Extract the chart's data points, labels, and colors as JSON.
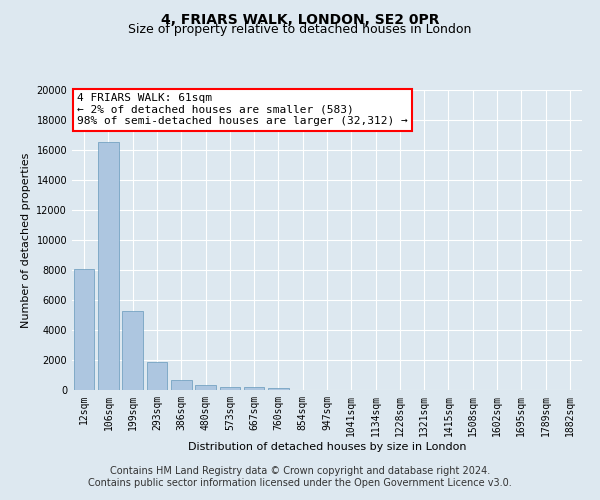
{
  "title": "4, FRIARS WALK, LONDON, SE2 0PR",
  "subtitle": "Size of property relative to detached houses in London",
  "xlabel": "Distribution of detached houses by size in London",
  "ylabel": "Number of detached properties",
  "footer_line1": "Contains HM Land Registry data © Crown copyright and database right 2024.",
  "footer_line2": "Contains public sector information licensed under the Open Government Licence v3.0.",
  "annotation_line1": "4 FRIARS WALK: 61sqm",
  "annotation_line2": "← 2% of detached houses are smaller (583)",
  "annotation_line3": "98% of semi-detached houses are larger (32,312) →",
  "bar_color": "#adc6e0",
  "bar_edge_color": "#6699bb",
  "categories": [
    "12sqm",
    "106sqm",
    "199sqm",
    "293sqm",
    "386sqm",
    "480sqm",
    "573sqm",
    "667sqm",
    "760sqm",
    "854sqm",
    "947sqm",
    "1041sqm",
    "1134sqm",
    "1228sqm",
    "1321sqm",
    "1415sqm",
    "1508sqm",
    "1602sqm",
    "1695sqm",
    "1789sqm",
    "1882sqm"
  ],
  "values": [
    8100,
    16500,
    5300,
    1850,
    700,
    350,
    220,
    175,
    140,
    0,
    0,
    0,
    0,
    0,
    0,
    0,
    0,
    0,
    0,
    0,
    0
  ],
  "ylim": [
    0,
    20000
  ],
  "yticks": [
    0,
    2000,
    4000,
    6000,
    8000,
    10000,
    12000,
    14000,
    16000,
    18000,
    20000
  ],
  "background_color": "#dde8f0",
  "plot_bg_color": "#dde8f0",
  "grid_color": "#ffffff",
  "title_fontsize": 10,
  "subtitle_fontsize": 9,
  "axis_label_fontsize": 8,
  "tick_fontsize": 7,
  "annotation_fontsize": 8,
  "footer_fontsize": 7
}
